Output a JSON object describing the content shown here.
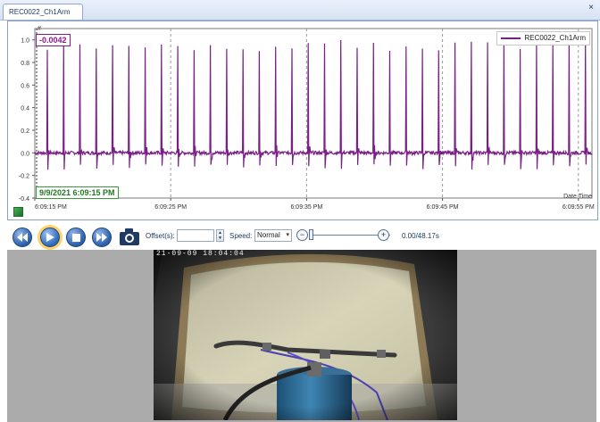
{
  "tab": {
    "label": "REC0022_Ch1Arm",
    "close_glyph": "×"
  },
  "chart": {
    "cursor_value": "-0.0042",
    "cursor_marker": "#",
    "cursor_datetime": "9/9/2021 6:09:15 PM",
    "legend_label": "REC0022_Ch1Arm",
    "x_axis_title": "Date Time",
    "series_color": "#7a1f85"
  },
  "chart_data": {
    "type": "line",
    "series": [
      {
        "name": "REC0022_Ch1Arm",
        "color": "#7a1f85",
        "description_pattern": "periodic spikes",
        "spike_interval_s": 1.2,
        "baseline": 0.0,
        "spike_peak": 1.0,
        "spike_trough": -0.1
      }
    ],
    "xlabel": "Date Time",
    "x_ticks": [
      "6:09:15 PM",
      "6:09:25 PM",
      "6:09:35 PM",
      "6:09:45 PM",
      "6:09:55 PM"
    ],
    "y_ticks": [
      1.0,
      0.8,
      0.6,
      0.4,
      0.2,
      0.0,
      -0.2,
      -0.4
    ],
    "y_tick_labels": [
      "1.0",
      "0.8",
      "0.6",
      "0.4",
      "0.2",
      "0.0",
      "-0.2",
      "-0.4"
    ],
    "ylim": [
      -0.4,
      1.1
    ],
    "xlim_seconds": [
      0,
      41
    ],
    "grid": true,
    "legend_position": "top-right"
  },
  "controls": {
    "offset_label": "Offset(s):",
    "offset_value": "",
    "speed_label": "Speed:",
    "speed_value": "Normal",
    "zoom_minus": "−",
    "zoom_plus": "+",
    "time_readout": "0.00/48.17s",
    "playback_progress": 0.0
  },
  "video": {
    "timestamp_overlay": "21-09-09  18:04:04"
  }
}
